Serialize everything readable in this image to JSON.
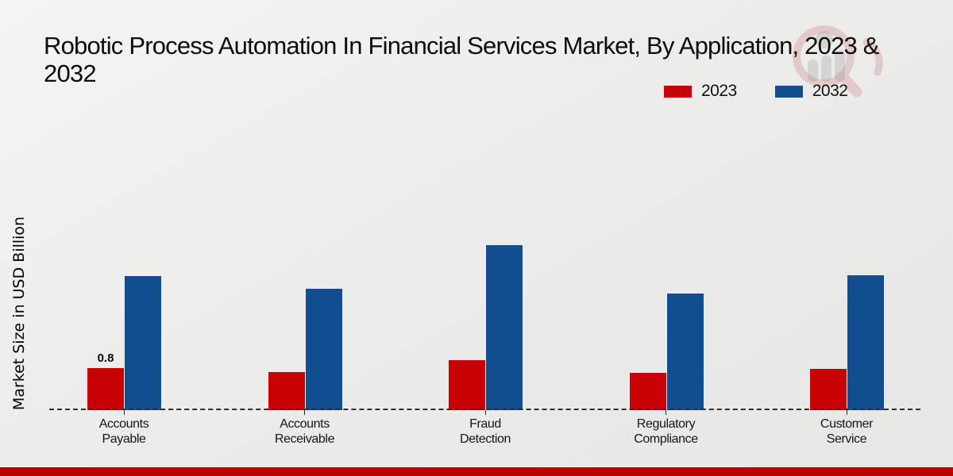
{
  "header": {
    "title": "Robotic Process Automation In Financial Services Market, By Application, 2023 & 2032"
  },
  "watermark_icon": "magnifier-person-bars-logo",
  "footer": {
    "band_color": "#c00000"
  },
  "axis": {
    "baseline_style": "dashed",
    "baseline_color": "#2e2e2e"
  },
  "chart_data": {
    "type": "bar",
    "title": "Robotic Process Automation In Financial Services Market, By Application, 2023 & 2032",
    "xlabel": "",
    "ylabel": "Market Size in USD Billion",
    "categories": [
      "Accounts Payable",
      "Accounts Receivable",
      "Fraud Detection",
      "Regulatory Compliance",
      "Customer Service"
    ],
    "series": [
      {
        "name": "2023",
        "color": "#c80202",
        "values": [
          0.8,
          0.72,
          0.95,
          0.71,
          0.78
        ]
      },
      {
        "name": "2032",
        "color": "#114e8f",
        "values": [
          2.55,
          2.31,
          3.14,
          2.22,
          2.57
        ]
      }
    ],
    "annotations": [
      {
        "series": "2023",
        "category_index": 0,
        "text": "0.8"
      }
    ],
    "ylim": [
      0,
      3.5
    ],
    "grid": false,
    "legend_position": "top-right",
    "y_axis_ticks_visible": false
  }
}
